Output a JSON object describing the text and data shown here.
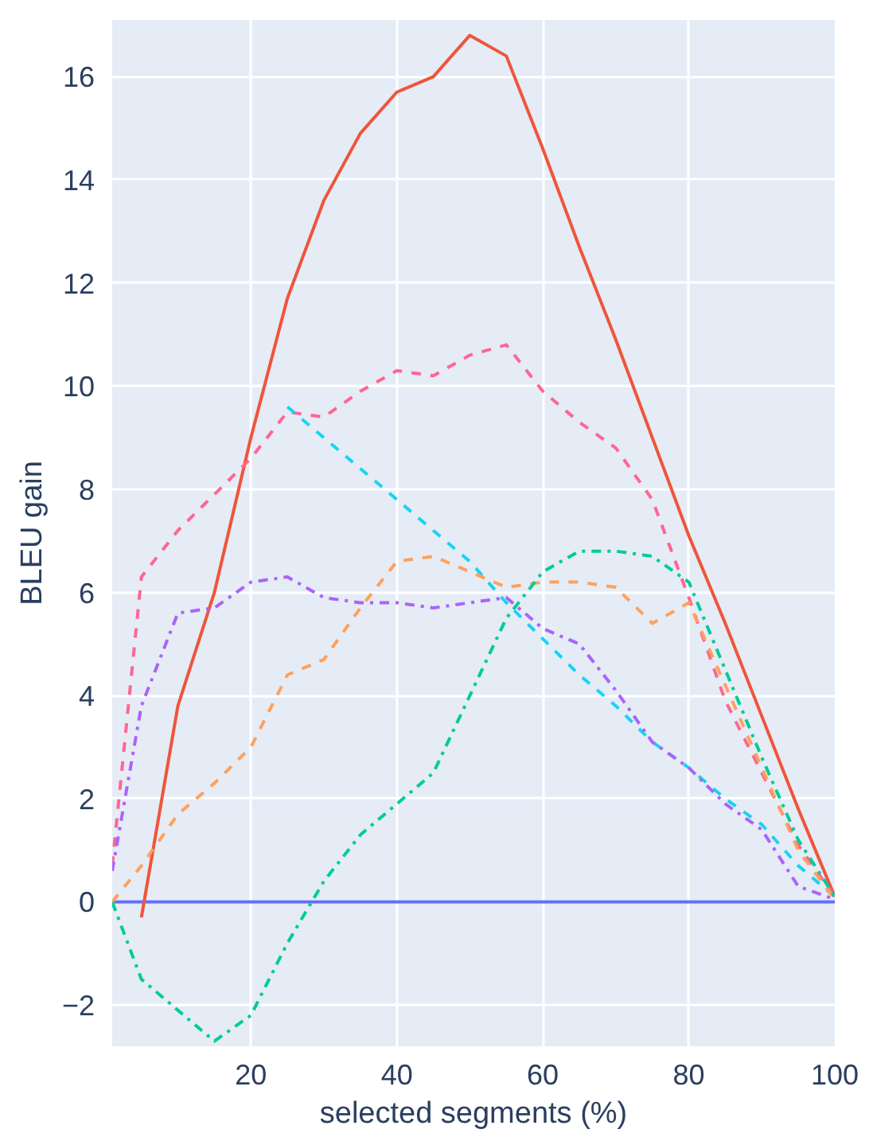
{
  "chart_data": {
    "type": "line",
    "xlabel": "selected segments (%)",
    "ylabel": "BLEU gain",
    "xlim": [
      1,
      100
    ],
    "xticks": [
      20,
      40,
      60,
      80,
      100
    ],
    "ylim": [
      -2.8,
      17.1
    ],
    "yticks": [
      {
        "value": -2,
        "label": "−2"
      },
      0,
      2,
      4,
      6,
      8,
      10,
      12,
      14,
      16
    ],
    "grid": true,
    "series": [
      {
        "color": "#636efa",
        "line_style": "solid",
        "x": [
          1,
          100
        ],
        "values": [
          0,
          0
        ]
      },
      {
        "color": "#ef553b",
        "line_style": "solid",
        "x": [
          5,
          10,
          15,
          20,
          25,
          30,
          35,
          40,
          45,
          50,
          55,
          60,
          65,
          70,
          75,
          80,
          85,
          90,
          95,
          100
        ],
        "values": [
          -0.3,
          3.8,
          6.0,
          9.0,
          11.7,
          13.6,
          14.9,
          15.7,
          16.0,
          16.8,
          16.4,
          14.6,
          12.7,
          10.9,
          9.0,
          7.1,
          5.4,
          3.6,
          1.8,
          0.1
        ]
      },
      {
        "color": "#ff6692",
        "line_style": "dashed",
        "x": [
          1,
          5,
          10,
          15,
          20,
          25,
          30,
          35,
          40,
          45,
          50,
          55,
          60,
          65,
          70,
          75,
          80,
          85,
          90,
          95,
          100
        ],
        "values": [
          0.7,
          6.3,
          7.2,
          7.9,
          8.6,
          9.5,
          9.4,
          9.9,
          10.3,
          10.2,
          10.6,
          10.8,
          9.9,
          9.3,
          8.8,
          7.8,
          5.9,
          3.9,
          2.5,
          1.1,
          0.1
        ]
      },
      {
        "color": "#19d3f3",
        "line_style": "dashed",
        "x": [
          25,
          30,
          35,
          40,
          45,
          50,
          55,
          60,
          65,
          70,
          75,
          80,
          85,
          90,
          95,
          100
        ],
        "values": [
          9.6,
          9.0,
          8.4,
          7.8,
          7.2,
          6.6,
          5.8,
          5.1,
          4.4,
          3.8,
          3.1,
          2.6,
          2.0,
          1.5,
          0.7,
          0.1
        ]
      },
      {
        "color": "#ab63fa",
        "line_style": "dashdot",
        "x": [
          1,
          5,
          10,
          15,
          20,
          25,
          30,
          35,
          40,
          45,
          50,
          55,
          60,
          65,
          70,
          75,
          80,
          85,
          90,
          95,
          100
        ],
        "values": [
          0.6,
          3.8,
          5.6,
          5.7,
          6.2,
          6.3,
          5.9,
          5.8,
          5.8,
          5.7,
          5.8,
          5.9,
          5.3,
          5.0,
          4.1,
          3.1,
          2.6,
          1.9,
          1.4,
          0.3,
          0.05
        ]
      },
      {
        "color": "#ffa15a",
        "line_style": "dashed",
        "x": [
          1,
          5,
          10,
          15,
          20,
          25,
          30,
          35,
          40,
          45,
          50,
          55,
          60,
          65,
          70,
          75,
          80,
          85,
          90,
          95,
          100
        ],
        "values": [
          0,
          0.7,
          1.7,
          2.3,
          3.0,
          4.4,
          4.7,
          5.7,
          6.6,
          6.7,
          6.4,
          6.1,
          6.2,
          6.2,
          6.1,
          5.4,
          5.8,
          4.2,
          2.6,
          1.0,
          0.05
        ]
      },
      {
        "color": "#00cc96",
        "line_style": "dashdot",
        "x": [
          1,
          5,
          10,
          15,
          20,
          25,
          30,
          35,
          40,
          45,
          50,
          55,
          60,
          65,
          70,
          75,
          80,
          85,
          90,
          95,
          100
        ],
        "values": [
          0,
          -1.5,
          -2.1,
          -2.7,
          -2.2,
          -0.8,
          0.4,
          1.3,
          1.9,
          2.5,
          4.0,
          5.5,
          6.4,
          6.8,
          6.8,
          6.7,
          6.2,
          4.5,
          2.8,
          1.2,
          0.1
        ]
      }
    ]
  }
}
